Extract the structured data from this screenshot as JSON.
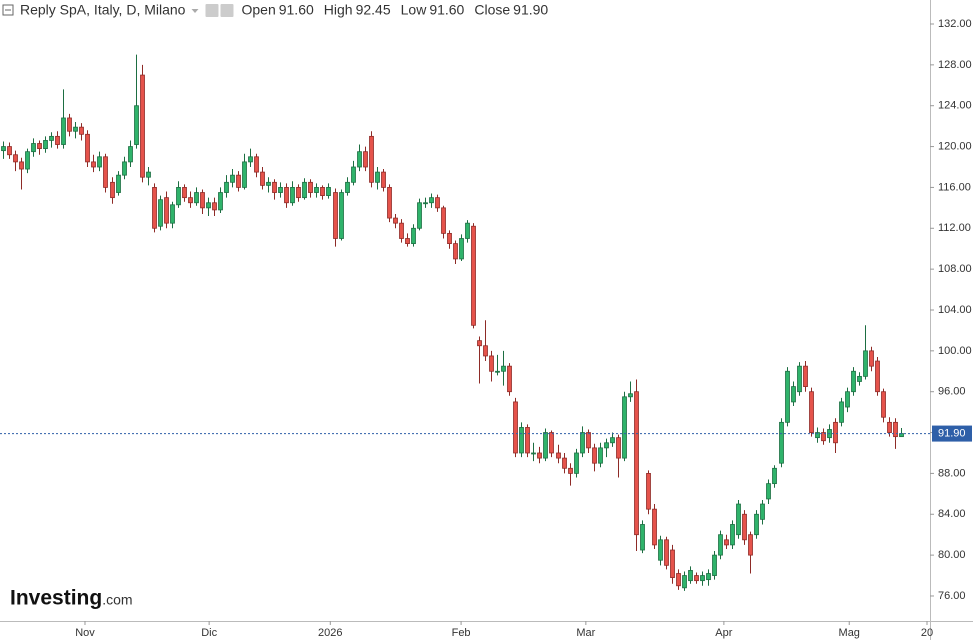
{
  "chart_data": {
    "type": "candlestick",
    "title": "Reply SpA, Italy, D, Milano",
    "legend": [
      {
        "label": "Open",
        "value": "91.60"
      },
      {
        "label": "High",
        "value": "92.45"
      },
      {
        "label": "Low",
        "value": "91.60"
      },
      {
        "label": "Close",
        "value": "91.90"
      }
    ],
    "watermark": [
      "Investing",
      ".com"
    ],
    "up_color": "#2fb36b",
    "down_color": "#e5534b",
    "up_edge": "#1d6e42",
    "down_edge": "#8e2b27",
    "last_price": {
      "value": 91.9,
      "label": "91.90",
      "color": "#2e5fa8"
    },
    "ylim": [
      73.55,
      134.35
    ],
    "yticks": [
      {
        "value": 76,
        "label": "76.00"
      },
      {
        "value": 80,
        "label": "80.00"
      },
      {
        "value": 84,
        "label": "84.00"
      },
      {
        "value": 88,
        "label": "88.00"
      },
      {
        "value": 92,
        "label": "92.00"
      },
      {
        "value": 96,
        "label": "96.00"
      },
      {
        "value": 100,
        "label": "100.00"
      },
      {
        "value": 104,
        "label": "104.00"
      },
      {
        "value": 108,
        "label": "108.00"
      },
      {
        "value": 112,
        "label": "112.00"
      },
      {
        "value": 116,
        "label": "116.00"
      },
      {
        "value": 120,
        "label": "120.00"
      },
      {
        "value": 124,
        "label": "124.00"
      },
      {
        "value": 128,
        "label": "128.00"
      },
      {
        "value": 132,
        "label": "132.00"
      }
    ],
    "xlim": [
      -0.5,
      153.8
    ],
    "xticks": [
      {
        "value": 13.6,
        "label": "Nov"
      },
      {
        "value": 34.2,
        "label": "Dic"
      },
      {
        "value": 54.3,
        "label": "2026"
      },
      {
        "value": 76.0,
        "label": "Feb"
      },
      {
        "value": 96.7,
        "label": "Mar"
      },
      {
        "value": 119.6,
        "label": "Apr"
      },
      {
        "value": 140.4,
        "label": "Mag"
      },
      {
        "value": 153.3,
        "label": "20"
      }
    ],
    "ohlc": [
      [
        119.6,
        120.5,
        118.8,
        120.0
      ],
      [
        120.0,
        120.4,
        118.8,
        119.2
      ],
      [
        119.2,
        119.6,
        117.6,
        118.5
      ],
      [
        118.5,
        118.9,
        115.8,
        117.8
      ],
      [
        117.8,
        119.8,
        117.4,
        119.5
      ],
      [
        119.5,
        120.8,
        119.0,
        120.3
      ],
      [
        120.3,
        120.6,
        119.2,
        119.8
      ],
      [
        119.8,
        121.0,
        119.4,
        120.6
      ],
      [
        120.6,
        121.4,
        119.9,
        121.0
      ],
      [
        121.0,
        121.5,
        119.8,
        120.2
      ],
      [
        120.2,
        125.6,
        119.8,
        122.8
      ],
      [
        122.8,
        123.2,
        121.0,
        121.5
      ],
      [
        121.5,
        122.4,
        120.8,
        121.9
      ],
      [
        121.9,
        122.3,
        120.6,
        121.2
      ],
      [
        121.2,
        121.6,
        118.0,
        118.5
      ],
      [
        118.5,
        119.2,
        117.5,
        118.0
      ],
      [
        118.0,
        119.5,
        117.6,
        119.0
      ],
      [
        119.0,
        119.3,
        115.5,
        116.0
      ],
      [
        116.5,
        117.0,
        114.4,
        115.0
      ],
      [
        115.5,
        117.6,
        115.2,
        117.2
      ],
      [
        117.2,
        119.0,
        116.8,
        118.5
      ],
      [
        118.5,
        120.6,
        118.0,
        120.0
      ],
      [
        120.2,
        129.0,
        119.8,
        124.0
      ],
      [
        127.0,
        128.0,
        116.5,
        117.0
      ],
      [
        117.0,
        118.0,
        116.2,
        117.5
      ],
      [
        116.0,
        116.4,
        111.6,
        112.0
      ],
      [
        112.2,
        115.2,
        111.8,
        114.8
      ],
      [
        115.0,
        115.6,
        112.0,
        112.5
      ],
      [
        112.5,
        114.6,
        112.0,
        114.3
      ],
      [
        114.3,
        116.6,
        114.0,
        116.0
      ],
      [
        116.0,
        116.3,
        114.6,
        115.0
      ],
      [
        115.0,
        115.6,
        114.0,
        114.5
      ],
      [
        114.5,
        116.0,
        114.2,
        115.5
      ],
      [
        115.5,
        115.8,
        113.4,
        114.0
      ],
      [
        114.0,
        115.0,
        113.2,
        114.5
      ],
      [
        114.5,
        115.0,
        113.2,
        113.8
      ],
      [
        113.8,
        116.0,
        113.5,
        115.5
      ],
      [
        115.5,
        117.2,
        115.0,
        116.5
      ],
      [
        116.5,
        117.8,
        116.0,
        117.2
      ],
      [
        117.2,
        117.6,
        115.6,
        116.0
      ],
      [
        116.0,
        119.3,
        115.8,
        118.5
      ],
      [
        118.5,
        119.8,
        118.0,
        119.0
      ],
      [
        119.0,
        119.3,
        117.0,
        117.5
      ],
      [
        117.5,
        118.0,
        115.8,
        116.2
      ],
      [
        116.2,
        117.0,
        115.5,
        116.5
      ],
      [
        116.5,
        116.8,
        114.8,
        115.5
      ],
      [
        115.5,
        116.5,
        115.0,
        116.0
      ],
      [
        116.0,
        116.4,
        114.0,
        114.5
      ],
      [
        114.5,
        116.6,
        114.2,
        116.0
      ],
      [
        116.0,
        116.3,
        114.6,
        115.0
      ],
      [
        115.0,
        116.9,
        114.8,
        116.5
      ],
      [
        116.5,
        116.8,
        115.0,
        115.5
      ],
      [
        115.5,
        116.4,
        115.0,
        116.0
      ],
      [
        116.0,
        116.2,
        114.8,
        115.2
      ],
      [
        115.2,
        116.4,
        114.9,
        116.0
      ],
      [
        115.5,
        115.9,
        110.2,
        111.0
      ],
      [
        111.0,
        115.8,
        110.8,
        115.5
      ],
      [
        115.5,
        117.0,
        115.2,
        116.5
      ],
      [
        116.5,
        118.6,
        116.2,
        118.0
      ],
      [
        118.0,
        120.2,
        117.6,
        119.5
      ],
      [
        119.5,
        120.0,
        117.6,
        118.0
      ],
      [
        121.0,
        121.5,
        116.0,
        116.5
      ],
      [
        116.5,
        118.0,
        115.8,
        117.5
      ],
      [
        117.5,
        117.8,
        115.6,
        116.0
      ],
      [
        116.0,
        116.3,
        112.6,
        113.0
      ],
      [
        113.0,
        113.4,
        112.0,
        112.5
      ],
      [
        112.5,
        112.9,
        110.6,
        111.0
      ],
      [
        111.0,
        111.5,
        110.2,
        110.5
      ],
      [
        110.5,
        112.4,
        110.2,
        112.0
      ],
      [
        112.0,
        114.9,
        111.8,
        114.5
      ],
      [
        114.5,
        115.0,
        114.0,
        114.5
      ],
      [
        114.5,
        115.4,
        114.0,
        115.0
      ],
      [
        115.0,
        115.3,
        113.6,
        114.0
      ],
      [
        114.0,
        114.2,
        111.0,
        111.5
      ],
      [
        111.5,
        111.8,
        110.0,
        110.5
      ],
      [
        110.5,
        110.8,
        108.5,
        109.0
      ],
      [
        109.0,
        111.4,
        108.8,
        111.0
      ],
      [
        111.0,
        112.8,
        110.6,
        112.5
      ],
      [
        112.2,
        112.5,
        102.2,
        102.5
      ],
      [
        101.0,
        101.4,
        96.8,
        100.5
      ],
      [
        100.5,
        103.0,
        99.0,
        99.5
      ],
      [
        99.5,
        100.0,
        97.0,
        98.0
      ],
      [
        98.0,
        99.6,
        97.6,
        98.0
      ],
      [
        98.0,
        100.0,
        96.6,
        98.5
      ],
      [
        98.5,
        98.8,
        95.6,
        96.0
      ],
      [
        95.0,
        95.4,
        89.6,
        90.0
      ],
      [
        90.0,
        93.0,
        89.6,
        92.5
      ],
      [
        92.5,
        92.8,
        89.6,
        90.0
      ],
      [
        90.0,
        91.0,
        89.2,
        90.0
      ],
      [
        90.0,
        90.6,
        89.0,
        89.5
      ],
      [
        89.5,
        92.4,
        89.2,
        92.0
      ],
      [
        92.0,
        92.2,
        89.6,
        90.0
      ],
      [
        90.0,
        90.8,
        89.0,
        89.5
      ],
      [
        89.5,
        90.0,
        88.0,
        88.5
      ],
      [
        88.5,
        89.0,
        86.8,
        88.0
      ],
      [
        88.0,
        90.4,
        87.6,
        90.0
      ],
      [
        90.0,
        92.6,
        89.6,
        92.0
      ],
      [
        92.0,
        92.3,
        90.0,
        90.5
      ],
      [
        90.5,
        90.9,
        88.2,
        89.0
      ],
      [
        89.0,
        91.0,
        88.6,
        90.5
      ],
      [
        90.5,
        91.4,
        89.6,
        91.0
      ],
      [
        91.0,
        92.0,
        90.6,
        91.5
      ],
      [
        91.5,
        91.8,
        87.6,
        89.5
      ],
      [
        89.5,
        96.0,
        89.2,
        95.5
      ],
      [
        95.5,
        97.0,
        95.0,
        95.8
      ],
      [
        96.0,
        97.2,
        80.4,
        82.0
      ],
      [
        80.5,
        83.4,
        80.2,
        83.0
      ],
      [
        88.0,
        88.3,
        84.0,
        84.5
      ],
      [
        84.5,
        85.0,
        80.6,
        81.0
      ],
      [
        79.5,
        81.9,
        79.0,
        81.5
      ],
      [
        81.5,
        81.8,
        78.6,
        79.0
      ],
      [
        80.5,
        81.0,
        77.2,
        77.8
      ],
      [
        78.2,
        78.6,
        76.6,
        77.0
      ],
      [
        76.8,
        78.4,
        76.5,
        78.0
      ],
      [
        77.5,
        78.9,
        77.2,
        78.5
      ],
      [
        78.0,
        78.3,
        77.2,
        77.5
      ],
      [
        77.5,
        78.4,
        77.0,
        78.0
      ],
      [
        77.6,
        78.6,
        77.0,
        78.2
      ],
      [
        78.0,
        80.4,
        77.6,
        80.0
      ],
      [
        80.0,
        82.4,
        79.6,
        82.0
      ],
      [
        81.5,
        82.0,
        80.6,
        81.0
      ],
      [
        81.0,
        83.4,
        80.6,
        83.0
      ],
      [
        82.0,
        85.4,
        81.6,
        85.0
      ],
      [
        84.0,
        84.4,
        81.0,
        81.5
      ],
      [
        82.0,
        82.3,
        78.2,
        80.0
      ],
      [
        82.0,
        84.4,
        81.6,
        84.0
      ],
      [
        83.5,
        85.4,
        83.0,
        85.0
      ],
      [
        85.5,
        87.4,
        85.0,
        87.0
      ],
      [
        87.0,
        88.8,
        86.6,
        88.5
      ],
      [
        89.0,
        93.4,
        88.6,
        93.0
      ],
      [
        93.0,
        98.4,
        92.6,
        98.0
      ],
      [
        95.0,
        97.0,
        94.6,
        96.5
      ],
      [
        96.0,
        98.9,
        95.6,
        98.5
      ],
      [
        98.5,
        99.0,
        96.0,
        96.5
      ],
      [
        96.0,
        96.4,
        91.6,
        92.0
      ],
      [
        91.5,
        92.5,
        91.0,
        92.0
      ],
      [
        92.0,
        92.4,
        90.8,
        91.2
      ],
      [
        91.5,
        92.8,
        91.0,
        92.3
      ],
      [
        93.0,
        93.4,
        90.0,
        91.0
      ],
      [
        93.0,
        95.4,
        92.6,
        95.0
      ],
      [
        94.5,
        96.4,
        94.0,
        96.0
      ],
      [
        96.0,
        98.4,
        95.6,
        98.0
      ],
      [
        97.0,
        97.9,
        96.6,
        97.5
      ],
      [
        97.5,
        102.5,
        97.2,
        100.0
      ],
      [
        100.0,
        100.4,
        98.0,
        98.5
      ],
      [
        99.0,
        99.4,
        95.6,
        96.0
      ],
      [
        96.0,
        96.3,
        93.0,
        93.5
      ],
      [
        93.0,
        93.5,
        91.6,
        92.0
      ],
      [
        93.0,
        93.4,
        90.4,
        91.6
      ],
      [
        91.6,
        92.45,
        91.6,
        91.9
      ]
    ]
  }
}
